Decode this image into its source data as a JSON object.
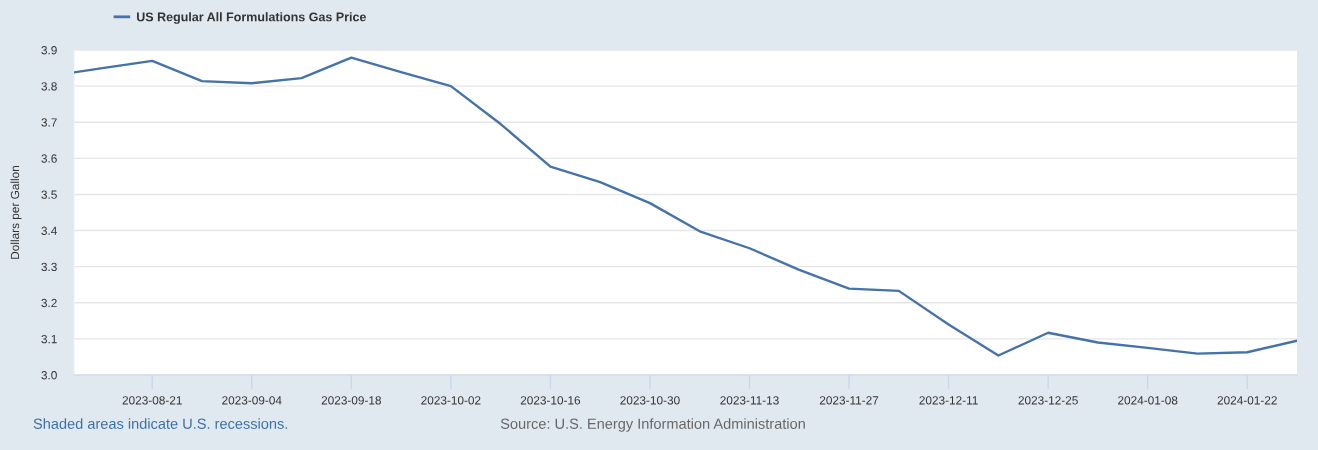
{
  "chart_data": {
    "type": "line",
    "ylabel": "Dollars per Gallon",
    "annotations": [
      "Shaded areas indicate U.S. recessions.",
      "Source: U.S. Energy Information Administration"
    ],
    "x": [
      "2023-08-10",
      "2023-08-14",
      "2023-08-21",
      "2023-08-28",
      "2023-09-04",
      "2023-09-11",
      "2023-09-18",
      "2023-09-25",
      "2023-10-02",
      "2023-10-09",
      "2023-10-16",
      "2023-10-23",
      "2023-10-30",
      "2023-11-06",
      "2023-11-13",
      "2023-11-20",
      "2023-11-27",
      "2023-12-04",
      "2023-12-11",
      "2023-12-18",
      "2023-12-25",
      "2024-01-01",
      "2024-01-08",
      "2024-01-15",
      "2024-01-22",
      "2024-01-29"
    ],
    "series": [
      {
        "name": "US Regular All Formulations Gas Price",
        "color": "#4572a7",
        "values": [
          3.838,
          3.85,
          3.87,
          3.814,
          3.808,
          3.822,
          3.879,
          3.839,
          3.8,
          3.695,
          3.577,
          3.534,
          3.476,
          3.398,
          3.351,
          3.291,
          3.239,
          3.233,
          3.14,
          3.054,
          3.117,
          3.09,
          3.075,
          3.059,
          3.063,
          3.095
        ]
      }
    ],
    "xlim": [
      "2023-08-10",
      "2024-01-29"
    ],
    "xticks": [
      "2023-08-21",
      "2023-09-04",
      "2023-09-18",
      "2023-10-02",
      "2023-10-16",
      "2023-10-30",
      "2023-11-13",
      "2023-11-27",
      "2023-12-11",
      "2023-12-25",
      "2024-01-08",
      "2024-01-22"
    ],
    "ylim": [
      3.0,
      3.9
    ],
    "yticks": [
      {
        "value": 3,
        "label": "3.0"
      },
      3.1,
      3.2,
      3.3,
      3.4,
      3.5,
      3.6,
      3.7,
      3.8,
      3.9
    ],
    "grid": "y",
    "legend": "top left",
    "line_style": "solid"
  }
}
